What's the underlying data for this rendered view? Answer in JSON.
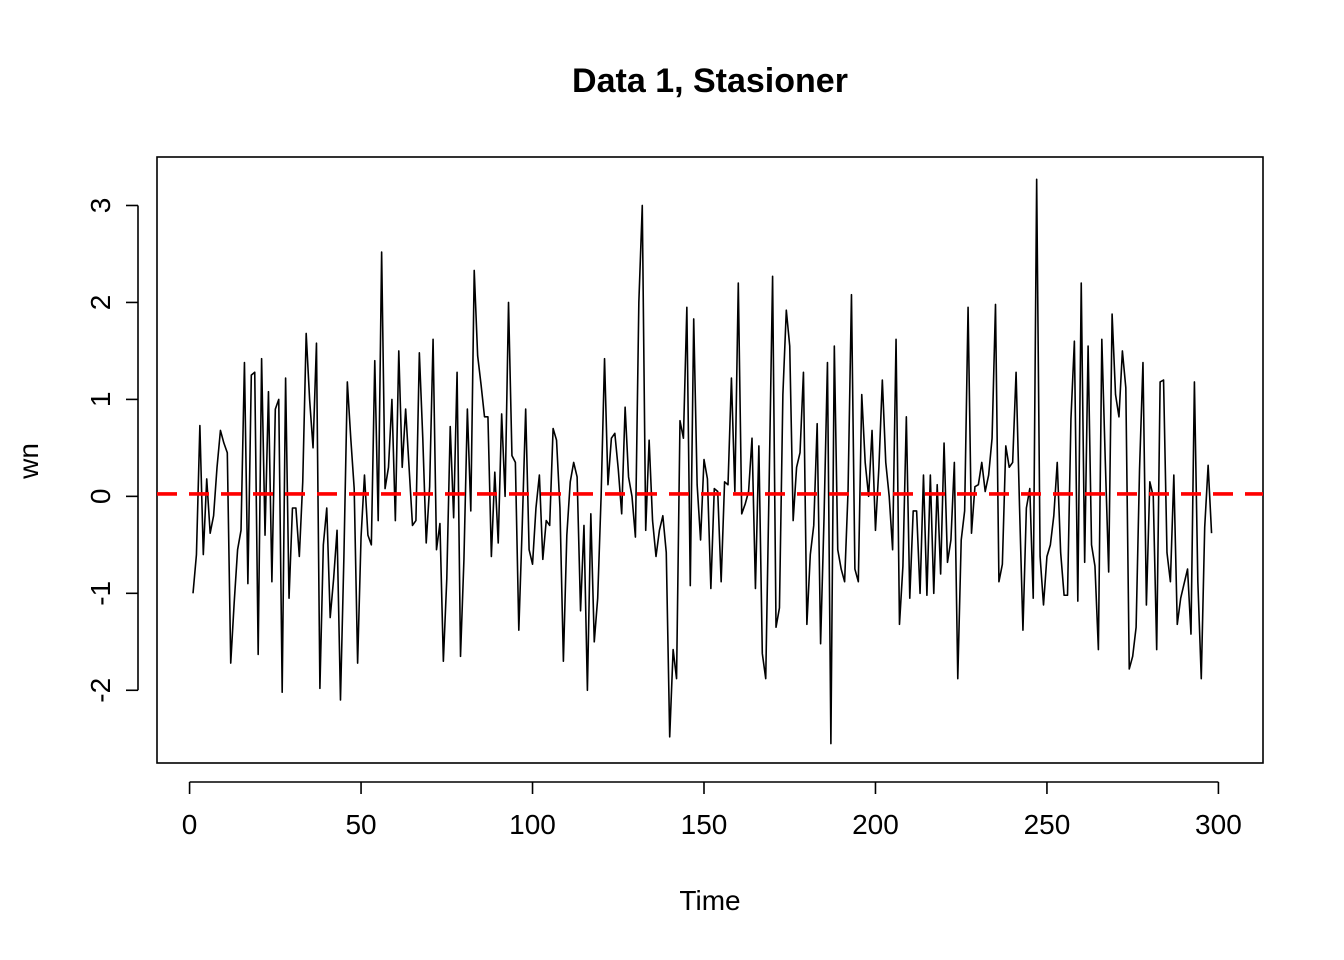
{
  "chart_data": {
    "type": "line",
    "title": "Data 1, Stasioner",
    "xlabel": "Time",
    "ylabel": "wn",
    "xlim": [
      -9.5,
      313
    ],
    "ylim": [
      -2.75,
      3.5
    ],
    "x_ticks": [
      0,
      50,
      100,
      150,
      200,
      250,
      300
    ],
    "x_tick_labels": [
      "0",
      "50",
      "100",
      "150",
      "200",
      "250",
      "300"
    ],
    "y_ticks": [
      -2,
      -1,
      0,
      1,
      2,
      3
    ],
    "y_tick_labels": [
      "-2",
      "-1",
      "0",
      "1",
      "2",
      "3"
    ],
    "grid": false,
    "series": [
      {
        "color": "#000000",
        "x_start": 1,
        "values": [
          -1.0,
          -0.6,
          0.73,
          -0.6,
          0.18,
          -0.38,
          -0.2,
          0.3,
          0.68,
          0.55,
          0.45,
          -1.72,
          -1.1,
          -0.55,
          -0.35,
          1.38,
          -0.9,
          1.25,
          1.28,
          -1.63,
          1.42,
          -0.4,
          1.08,
          -0.88,
          0.9,
          1.0,
          -2.02,
          1.22,
          -1.05,
          -0.12,
          -0.12,
          -0.62,
          0.15,
          1.68,
          1.0,
          0.5,
          1.58,
          -1.98,
          -0.5,
          -0.12,
          -1.25,
          -0.85,
          -0.35,
          -2.1,
          -0.62,
          1.18,
          0.6,
          0.08,
          -1.72,
          -0.42,
          0.22,
          -0.4,
          -0.5,
          1.4,
          -0.25,
          2.52,
          0.08,
          0.3,
          1.0,
          -0.25,
          1.5,
          0.3,
          0.9,
          0.3,
          -0.3,
          -0.25,
          1.48,
          0.6,
          -0.48,
          0.1,
          1.62,
          -0.55,
          -0.28,
          -1.7,
          -0.85,
          0.72,
          -0.22,
          1.28,
          -1.65,
          -0.65,
          0.9,
          -0.15,
          2.33,
          1.45,
          1.15,
          0.82,
          0.82,
          -0.62,
          0.25,
          -0.48,
          0.85,
          0.0,
          2.0,
          0.42,
          0.35,
          -1.38,
          -0.3,
          0.9,
          -0.55,
          -0.7,
          -0.12,
          0.22,
          -0.65,
          -0.25,
          -0.3,
          0.7,
          0.58,
          -0.12,
          -1.7,
          -0.4,
          0.15,
          0.35,
          0.2,
          -1.18,
          -0.3,
          -2.0,
          -0.18,
          -1.5,
          -1.05,
          0.0,
          1.42,
          0.12,
          0.6,
          0.65,
          0.28,
          -0.18,
          0.92,
          0.2,
          0.0,
          -0.42,
          2.0,
          3.0,
          -0.35,
          0.58,
          -0.25,
          -0.62,
          -0.35,
          -0.2,
          -0.58,
          -2.48,
          -1.58,
          -1.88,
          0.78,
          0.6,
          1.95,
          -0.92,
          1.83,
          0.12,
          -0.45,
          0.38,
          0.18,
          -0.95,
          0.08,
          0.05,
          -0.88,
          0.15,
          0.12,
          1.22,
          0.05,
          2.2,
          -0.18,
          -0.08,
          0.05,
          0.6,
          -0.95,
          0.52,
          -1.62,
          -1.88,
          0.15,
          2.27,
          -1.35,
          -1.15,
          1.05,
          1.92,
          1.55,
          -0.25,
          0.3,
          0.45,
          1.28,
          -1.32,
          -0.6,
          -0.3,
          0.75,
          -1.52,
          -0.22,
          1.38,
          -2.55,
          1.55,
          -0.55,
          -0.75,
          -0.88,
          0.05,
          2.08,
          -0.75,
          -0.88,
          1.05,
          0.35,
          0.0,
          0.68,
          -0.35,
          0.3,
          1.2,
          0.35,
          0.0,
          -0.55,
          1.62,
          -1.32,
          -0.72,
          0.82,
          -1.05,
          -0.15,
          -0.15,
          -1.0,
          0.22,
          -1.02,
          0.22,
          -1.0,
          0.12,
          -0.8,
          0.55,
          -0.68,
          -0.45,
          0.35,
          -1.88,
          -0.45,
          -0.15,
          1.95,
          -0.38,
          0.1,
          0.12,
          0.35,
          0.05,
          0.22,
          0.6,
          1.98,
          -0.88,
          -0.7,
          0.52,
          0.3,
          0.35,
          1.28,
          -0.1,
          -1.38,
          -0.12,
          0.08,
          -1.05,
          3.27,
          -0.62,
          -1.12,
          -0.62,
          -0.5,
          -0.2,
          0.35,
          -0.58,
          -1.02,
          -1.02,
          0.8,
          1.6,
          -1.08,
          2.2,
          -0.68,
          1.55,
          -0.5,
          -0.72,
          -1.58,
          1.62,
          0.38,
          -0.78,
          1.88,
          1.05,
          0.82,
          1.5,
          1.12,
          -1.78,
          -1.65,
          -1.35,
          0.28,
          1.38,
          -1.12,
          0.15,
          0.0,
          -1.58,
          1.18,
          1.2,
          -0.58,
          -0.88,
          0.22,
          -1.32,
          -1.05,
          -0.9,
          -0.75,
          -1.42,
          1.18,
          -0.88,
          -1.88,
          -0.32,
          0.32,
          -0.38
        ]
      },
      {
        "color": "#ff0000",
        "style": "dashed",
        "kind": "horizontal-reference-line",
        "value": 0.025
      }
    ]
  }
}
